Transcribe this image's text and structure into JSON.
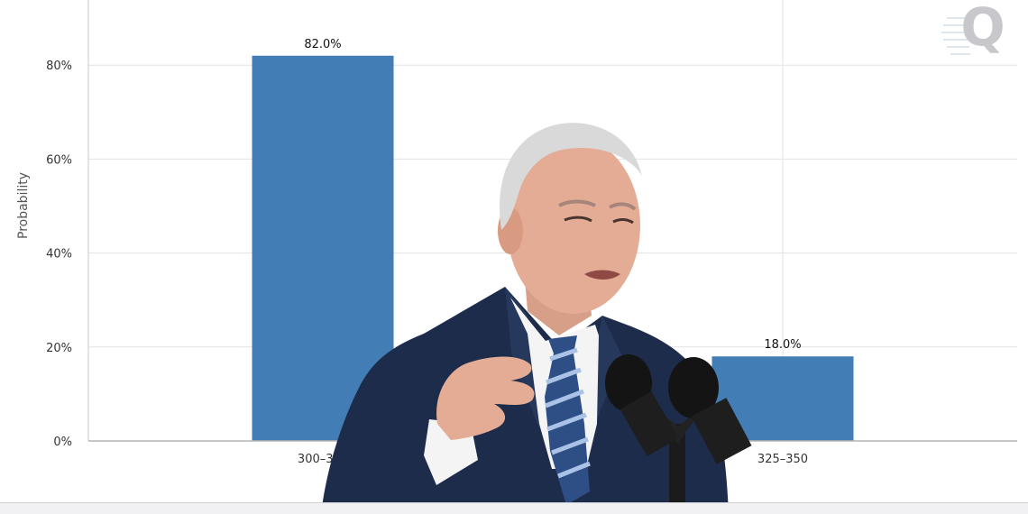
{
  "chart_data": {
    "type": "bar",
    "categories": [
      "300–325",
      "325–350"
    ],
    "values": [
      82.0,
      18.0
    ],
    "data_labels": [
      "82.0%",
      "18.0%"
    ],
    "title": "",
    "xlabel": "",
    "ylabel": "Probability",
    "ylim": [
      0,
      100
    ],
    "yticks": [
      0,
      20,
      40,
      60,
      80
    ],
    "ytick_labels": [
      "0%",
      "20%",
      "40%",
      "60%",
      "80%"
    ],
    "grid": true,
    "bar_color": "#427eb5",
    "gridline_color": "#e2e2e2"
  },
  "watermark": {
    "text": "Q",
    "color": "#c8c8cc"
  },
  "overlay_photo": {
    "icon": "person-at-podium-photo",
    "suit_color": "#1d2c4a",
    "shirt_color": "#f4f4f4",
    "tie_color": "#2e4f86",
    "hair_color": "#d9d9d9",
    "skin_color": "#e4ac95"
  }
}
